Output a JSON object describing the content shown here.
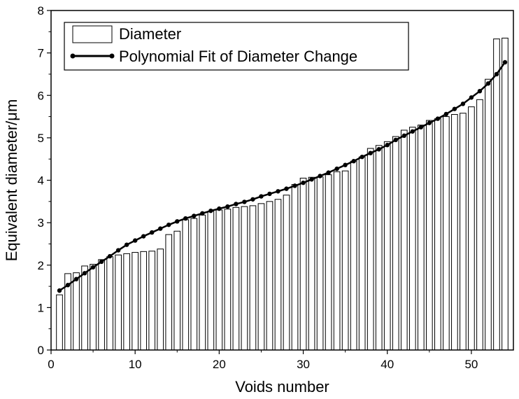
{
  "chart_data": {
    "type": "bar",
    "xlabel": "Voids number",
    "ylabel": "Equivalent diameter/μm",
    "xlim": [
      0,
      55
    ],
    "ylim": [
      0,
      8
    ],
    "x_ticks": [
      0,
      10,
      20,
      30,
      40,
      50
    ],
    "y_ticks": [
      0,
      1,
      2,
      3,
      4,
      5,
      6,
      7,
      8
    ],
    "grid": false,
    "legend_position": "top-left",
    "series": [
      {
        "name": "Diameter",
        "type": "bar",
        "x": [
          1,
          2,
          3,
          4,
          5,
          6,
          7,
          8,
          9,
          10,
          11,
          12,
          13,
          14,
          15,
          16,
          17,
          18,
          19,
          20,
          21,
          22,
          23,
          24,
          25,
          26,
          27,
          28,
          29,
          30,
          31,
          32,
          33,
          34,
          35,
          36,
          37,
          38,
          39,
          40,
          41,
          42,
          43,
          44,
          45,
          46,
          47,
          48,
          49,
          50,
          51,
          52,
          53,
          54
        ],
        "values": [
          1.3,
          1.8,
          1.82,
          1.98,
          2.02,
          2.13,
          2.2,
          2.24,
          2.27,
          2.3,
          2.32,
          2.33,
          2.38,
          2.72,
          2.8,
          3.07,
          3.1,
          3.18,
          3.27,
          3.3,
          3.32,
          3.36,
          3.38,
          3.4,
          3.45,
          3.5,
          3.55,
          3.65,
          3.9,
          4.05,
          4.07,
          4.08,
          4.13,
          4.2,
          4.22,
          4.45,
          4.55,
          4.75,
          4.82,
          4.91,
          5.03,
          5.18,
          5.25,
          5.3,
          5.41,
          5.45,
          5.5,
          5.55,
          5.58,
          5.73,
          5.9,
          6.38,
          7.33,
          7.35
        ],
        "color": "#ffffff",
        "edge_color": "#000000"
      },
      {
        "name": "Polynomial Fit of Diameter Change",
        "type": "line",
        "x": [
          1,
          2,
          3,
          4,
          5,
          6,
          7,
          8,
          9,
          10,
          11,
          12,
          13,
          14,
          15,
          16,
          17,
          18,
          19,
          20,
          21,
          22,
          23,
          24,
          25,
          26,
          27,
          28,
          29,
          30,
          31,
          32,
          33,
          34,
          35,
          36,
          37,
          38,
          39,
          40,
          41,
          42,
          43,
          44,
          45,
          46,
          47,
          48,
          49,
          50,
          51,
          52,
          53,
          54
        ],
        "values": [
          1.4,
          1.53,
          1.67,
          1.81,
          1.95,
          2.08,
          2.21,
          2.35,
          2.48,
          2.58,
          2.68,
          2.77,
          2.86,
          2.95,
          3.03,
          3.1,
          3.16,
          3.22,
          3.28,
          3.33,
          3.38,
          3.44,
          3.49,
          3.55,
          3.62,
          3.68,
          3.74,
          3.8,
          3.87,
          3.94,
          4.02,
          4.1,
          4.18,
          4.27,
          4.36,
          4.45,
          4.55,
          4.64,
          4.73,
          4.83,
          4.95,
          5.05,
          5.15,
          5.25,
          5.35,
          5.45,
          5.56,
          5.68,
          5.8,
          5.95,
          6.1,
          6.28,
          6.5,
          6.78
        ],
        "color": "#000000",
        "marker": "circle"
      }
    ]
  }
}
